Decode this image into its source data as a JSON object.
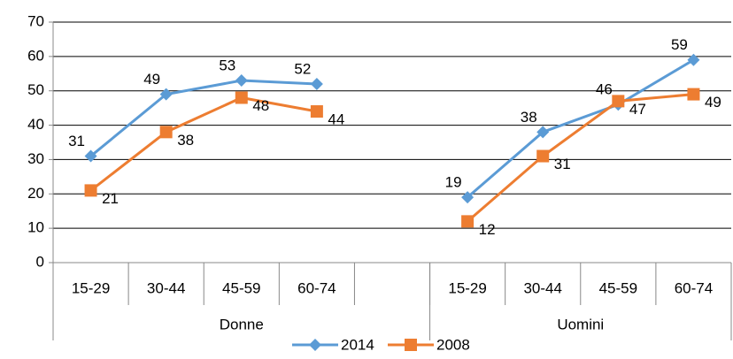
{
  "chart_data": {
    "type": "line",
    "categories": [
      "15-29",
      "30-44",
      "45-59",
      "60-74",
      null,
      "15-29",
      "30-44",
      "45-59",
      "60-74"
    ],
    "groups": [
      "Donne",
      "Uomini"
    ],
    "series": [
      {
        "name": "2014",
        "color": "#5b9bd5",
        "marker": "diamond",
        "values": [
          31,
          49,
          53,
          52,
          null,
          19,
          38,
          46,
          59
        ]
      },
      {
        "name": "2008",
        "color": "#ed7d31",
        "marker": "square",
        "values": [
          21,
          38,
          48,
          44,
          null,
          12,
          31,
          47,
          49
        ]
      }
    ],
    "ylim": [
      0,
      70
    ],
    "yticks": [
      0,
      10,
      20,
      30,
      40,
      50,
      60,
      70
    ],
    "grid": true,
    "legend": "bottom"
  }
}
